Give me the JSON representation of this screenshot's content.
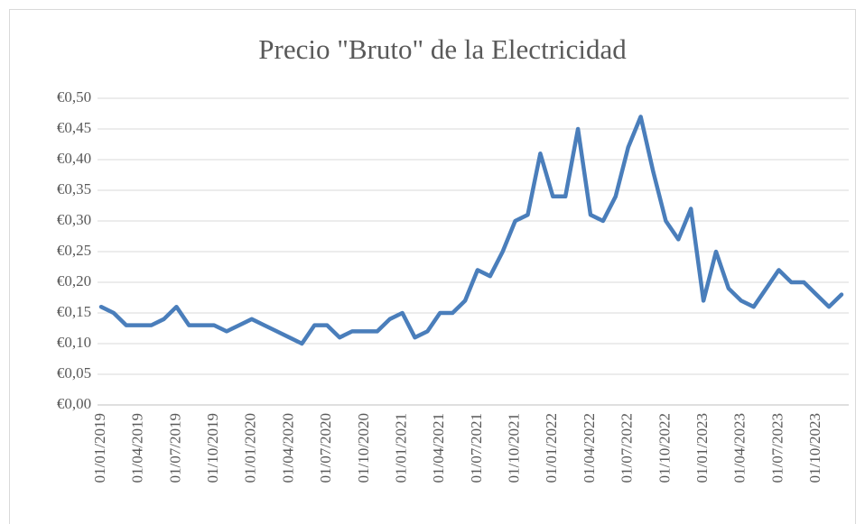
{
  "chart_data": {
    "type": "line",
    "title": "Precio \"Bruto\" de la Electricidad",
    "categories": [
      "01/01/2019",
      null,
      null,
      "01/04/2019",
      null,
      null,
      "01/07/2019",
      null,
      null,
      "01/10/2019",
      null,
      null,
      "01/01/2020",
      null,
      null,
      "01/04/2020",
      null,
      null,
      "01/07/2020",
      null,
      null,
      "01/10/2020",
      null,
      null,
      "01/01/2021",
      null,
      null,
      "01/04/2021",
      null,
      null,
      "01/07/2021",
      null,
      null,
      "01/10/2021",
      null,
      null,
      "01/01/2022",
      null,
      null,
      "01/04/2022",
      null,
      null,
      "01/07/2022",
      null,
      null,
      "01/10/2022",
      null,
      null,
      "01/01/2023",
      null,
      null,
      "01/04/2023",
      null,
      null,
      "01/07/2023",
      null,
      null,
      "01/10/2023",
      null,
      null
    ],
    "series": [
      {
        "name": "Precio",
        "color": "#4a7ebb",
        "values": [
          0.16,
          0.15,
          0.13,
          0.13,
          0.13,
          0.14,
          0.16,
          0.13,
          0.13,
          0.13,
          0.12,
          0.13,
          0.14,
          0.13,
          0.12,
          0.11,
          0.1,
          0.13,
          0.13,
          0.11,
          0.12,
          0.12,
          0.12,
          0.14,
          0.15,
          0.11,
          0.12,
          0.15,
          0.15,
          0.17,
          0.22,
          0.21,
          0.25,
          0.3,
          0.31,
          0.41,
          0.34,
          0.34,
          0.45,
          0.31,
          0.3,
          0.34,
          0.42,
          0.47,
          0.38,
          0.3,
          0.27,
          0.32,
          0.17,
          0.25,
          0.19,
          0.17,
          0.16,
          0.19,
          0.22,
          0.2,
          0.2,
          0.18,
          0.16,
          0.18
        ]
      }
    ],
    "ylim": [
      0,
      0.5
    ],
    "yticks": [
      {
        "value": 0,
        "label": "€0,00"
      },
      {
        "value": 0.05,
        "label": "€0,05"
      },
      {
        "value": 0.1,
        "label": "€0,10"
      },
      {
        "value": 0.15,
        "label": "€0,15"
      },
      {
        "value": 0.2,
        "label": "€0,20"
      },
      {
        "value": 0.25,
        "label": "€0,25"
      },
      {
        "value": 0.3,
        "label": "€0,30"
      },
      {
        "value": 0.35,
        "label": "€0,35"
      },
      {
        "value": 0.4,
        "label": "€0,40"
      },
      {
        "value": 0.45,
        "label": "€0,45"
      },
      {
        "value": 0.5,
        "label": "€0,50"
      }
    ],
    "grid": true
  }
}
